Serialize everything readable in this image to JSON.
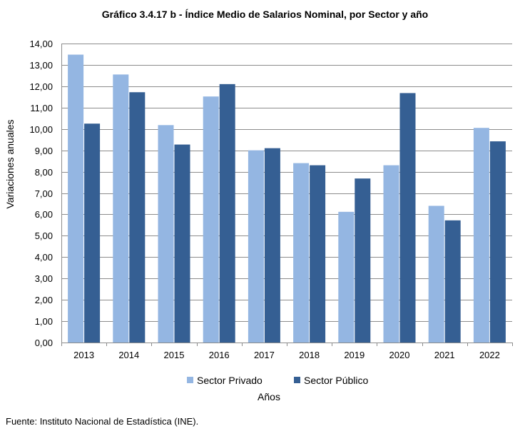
{
  "chart_data": {
    "type": "bar",
    "title": "Gráfico 3.4.17 b - Índice Medio de Salarios Nominal,  por Sector y año",
    "xlabel": "Años",
    "ylabel": "Variaciones anuales",
    "categories": [
      "2013",
      "2014",
      "2015",
      "2016",
      "2017",
      "2018",
      "2019",
      "2020",
      "2021",
      "2022"
    ],
    "series": [
      {
        "name": "Sector Privado",
        "color": "#94b6e2",
        "values": [
          13.48,
          12.55,
          10.18,
          11.52,
          9.0,
          8.4,
          6.12,
          8.3,
          6.4,
          10.05
        ]
      },
      {
        "name": "Sector Público",
        "color": "#355f93",
        "values": [
          10.25,
          11.72,
          9.27,
          12.1,
          9.1,
          8.3,
          7.68,
          11.68,
          5.72,
          9.42
        ]
      }
    ],
    "ylim": [
      0,
      14
    ],
    "yticks": [
      "0,00",
      "1,00",
      "2,00",
      "3,00",
      "4,00",
      "5,00",
      "6,00",
      "7,00",
      "8,00",
      "9,00",
      "10,00",
      "11,00",
      "12,00",
      "13,00",
      "14,00"
    ],
    "grid": true,
    "legend_position": "bottom"
  },
  "source_note": "Fuente: Instituto Nacional de Estadística (INE)."
}
